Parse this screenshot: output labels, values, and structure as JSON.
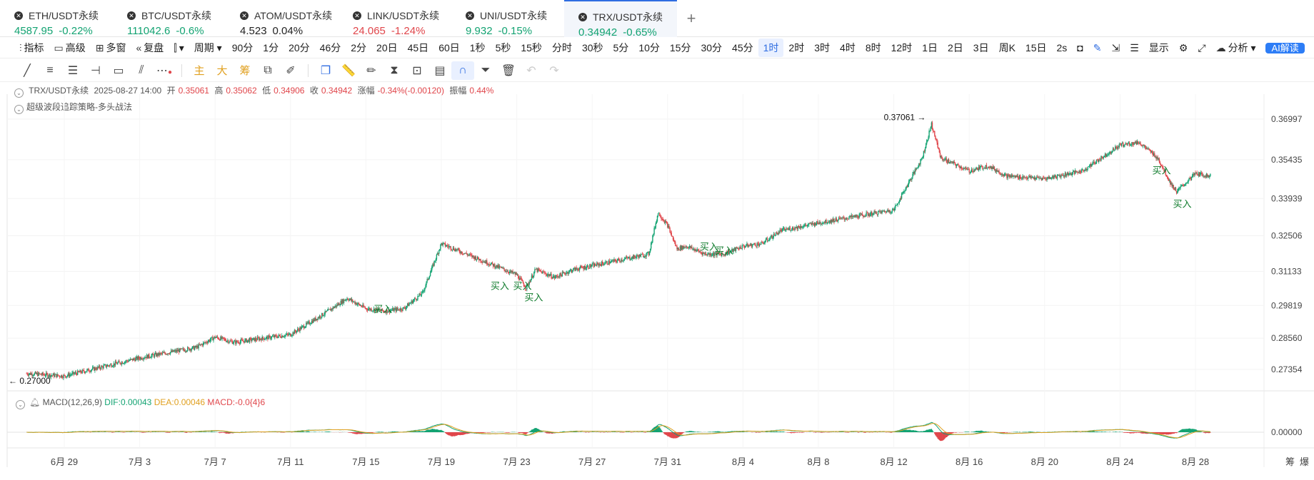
{
  "tabs": [
    {
      "symbol": "ETH/USDT永续",
      "price": "4587.95",
      "change": "-0.22%",
      "color": "green"
    },
    {
      "symbol": "BTC/USDT永续",
      "price": "111042.6",
      "change": "-0.6%",
      "color": "green"
    },
    {
      "symbol": "ATOM/USDT永续",
      "price": "4.523",
      "change": "0.04%",
      "color": "dark"
    },
    {
      "symbol": "LINK/USDT永续",
      "price": "24.065",
      "change": "-1.24%",
      "color": "red"
    },
    {
      "symbol": "UNI/USDT永续",
      "price": "9.932",
      "change": "-0.15%",
      "color": "green"
    },
    {
      "symbol": "TRX/USDT永续",
      "price": "0.34942",
      "change": "-0.65%",
      "color": "green"
    }
  ],
  "toolbar": {
    "indicator": "指标",
    "advanced": "高级",
    "multi": "多窗",
    "replay": "复盘",
    "period": "周期",
    "intervals": [
      "90分",
      "1分",
      "20分",
      "46分",
      "2分",
      "20日",
      "45日",
      "60日",
      "1秒",
      "5秒",
      "15秒",
      "分时",
      "30秒",
      "5分",
      "10分",
      "15分",
      "30分",
      "45分",
      "1时",
      "2时",
      "3时",
      "4时",
      "8时",
      "12时",
      "1日",
      "2日",
      "3日",
      "周K",
      "15日"
    ],
    "selected_interval": "1时",
    "refresh": "2s",
    "display": "显示",
    "analysis": "分析",
    "ai": "AI解读"
  },
  "draw_tools": {
    "main": "主",
    "big": "大",
    "chips": "筹"
  },
  "info": {
    "symbol": "TRX/USDT永续",
    "datetime": "2025-08-27 14:00",
    "open_label": "开",
    "open": "0.35061",
    "high_label": "高",
    "high": "0.35062",
    "low_label": "低",
    "low": "0.34906",
    "close_label": "收",
    "close": "0.34942",
    "chg_label": "涨幅",
    "chg": "-0.34%(-0.00120)",
    "amp_label": "振幅",
    "amp": "0.44%",
    "strategy": "超级波段追踪策略-多头战法"
  },
  "macd": {
    "label": "MACD(12,26,9)",
    "dif": "DIF:0.00043",
    "dea": "DEA:0.00046",
    "macd": "MACD:-0.0{4}6",
    "zero_label": "0.00000"
  },
  "chart_data": {
    "type": "candlestick",
    "y_ticks": [
      0.36997,
      0.35435,
      0.33939,
      0.32506,
      0.31133,
      0.29819,
      0.2856,
      0.27354
    ],
    "y_tick_labels": [
      "0.36997",
      "0.35435",
      "0.33939",
      "0.32506",
      "0.31133",
      "0.29819",
      "0.28560",
      "0.27354"
    ],
    "x_tick_labels": [
      "6月 29",
      "7月 3",
      "7月 7",
      "7月 11",
      "7月 15",
      "7月 19",
      "7月 23",
      "7月 27",
      "7月 31",
      "8月 4",
      "8月 8",
      "8月 12",
      "8月 16",
      "8月 20",
      "8月 24",
      "8月 28"
    ],
    "x_tick_days": [
      2,
      6,
      10,
      14,
      18,
      22,
      26,
      30,
      34,
      38,
      42,
      46,
      50,
      54,
      58,
      62
    ],
    "price_path": [
      [
        0,
        0.272
      ],
      [
        2,
        0.271
      ],
      [
        6,
        0.278
      ],
      [
        9,
        0.282
      ],
      [
        10,
        0.286
      ],
      [
        11,
        0.284
      ],
      [
        14,
        0.287
      ],
      [
        16,
        0.296
      ],
      [
        17,
        0.301
      ],
      [
        18,
        0.297
      ],
      [
        19,
        0.296
      ],
      [
        20,
        0.297
      ],
      [
        21,
        0.303
      ],
      [
        22,
        0.322
      ],
      [
        24,
        0.316
      ],
      [
        26,
        0.31
      ],
      [
        26.5,
        0.305
      ],
      [
        27,
        0.312
      ],
      [
        28,
        0.309
      ],
      [
        29,
        0.312
      ],
      [
        33,
        0.318
      ],
      [
        33.5,
        0.334
      ],
      [
        34,
        0.329
      ],
      [
        34.5,
        0.32
      ],
      [
        35,
        0.321
      ],
      [
        36,
        0.318
      ],
      [
        37,
        0.318
      ],
      [
        38,
        0.321
      ],
      [
        39,
        0.322
      ],
      [
        40,
        0.327
      ],
      [
        42,
        0.33
      ],
      [
        46,
        0.335
      ],
      [
        47.5,
        0.355
      ],
      [
        48,
        0.368
      ],
      [
        48.5,
        0.355
      ],
      [
        50,
        0.35
      ],
      [
        51,
        0.352
      ],
      [
        52,
        0.348
      ],
      [
        54,
        0.347
      ],
      [
        56,
        0.35
      ],
      [
        57,
        0.355
      ],
      [
        58,
        0.36
      ],
      [
        59,
        0.361
      ],
      [
        60,
        0.355
      ],
      [
        60.7,
        0.345
      ],
      [
        61,
        0.342
      ],
      [
        62,
        0.349
      ],
      [
        62.8,
        0.348
      ]
    ],
    "annotations": {
      "max": "0.37061",
      "min": "0.27000",
      "buy_label": "买入",
      "buy_signals": [
        [
          18.9,
          0.2955
        ],
        [
          25.1,
          0.3045
        ],
        [
          26.3,
          0.3045
        ],
        [
          26.9,
          0.3
        ],
        [
          36.2,
          0.3195
        ],
        [
          37.0,
          0.318
        ],
        [
          60.2,
          0.349
        ],
        [
          61.3,
          0.336
        ]
      ]
    }
  },
  "corner": {
    "a": "筹",
    "b": "爆"
  }
}
